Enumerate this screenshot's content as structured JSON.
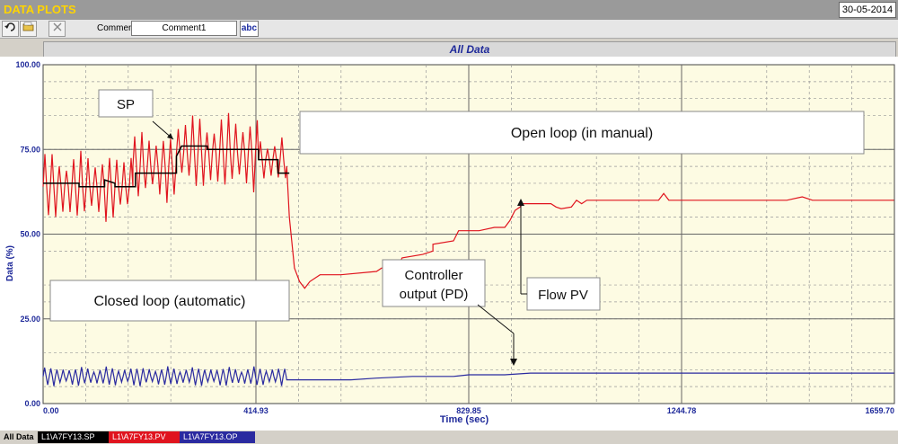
{
  "window": {
    "title": "DATA PLOTS",
    "date": "30-05-2014"
  },
  "toolbar": {
    "undo_icon": "undo-icon",
    "open_icon": "folder-icon",
    "close_icon": "close-icon",
    "comment_label": "Comment",
    "comment_value": "Comment1",
    "spell_label": "abc"
  },
  "chart_header": "All Data",
  "colors": {
    "sp": "#000000",
    "pv": "#e0141e",
    "op": "#2a2aa0",
    "grid": "#7a7a7a",
    "plot_bg": "#fdfbe3"
  },
  "chart_data": {
    "type": "line",
    "xlabel": "Time (sec)",
    "ylabel": "Data (%)",
    "xlim": [
      0.0,
      1659.7
    ],
    "ylim": [
      0,
      100
    ],
    "x_ticks": [
      "0.00",
      "414.93",
      "829.85",
      "1244.78",
      "1659.70"
    ],
    "y_ticks": [
      "0.00",
      "25.00",
      "50.00",
      "75.00",
      "100.00"
    ],
    "series": [
      {
        "name": "L1\\A7FY13.SP",
        "color": "#000000",
        "points": [
          [
            0,
            65
          ],
          [
            70,
            65
          ],
          [
            70,
            64
          ],
          [
            120,
            64
          ],
          [
            120,
            66
          ],
          [
            140,
            65
          ],
          [
            140,
            64
          ],
          [
            180,
            64
          ],
          [
            180,
            68
          ],
          [
            260,
            68
          ],
          [
            260,
            73
          ],
          [
            270,
            76
          ],
          [
            320,
            76
          ],
          [
            320,
            75
          ],
          [
            420,
            75
          ],
          [
            420,
            72
          ],
          [
            458,
            72
          ],
          [
            458,
            68
          ],
          [
            480,
            68
          ]
        ]
      },
      {
        "name": "L1\\A7FY13.PV",
        "color": "#e0141e",
        "segments": [
          {
            "start": 0,
            "end": 175,
            "center": 64,
            "amp": 9,
            "period": 14
          },
          {
            "start": 175,
            "end": 260,
            "center": 70,
            "amp": 9,
            "period": 14
          },
          {
            "start": 260,
            "end": 420,
            "center": 74,
            "amp": 10,
            "period": 14
          },
          {
            "start": 420,
            "end": 475,
            "center": 72,
            "amp": 6,
            "period": 14
          }
        ],
        "points": [
          [
            475,
            70
          ],
          [
            480,
            55
          ],
          [
            490,
            40
          ],
          [
            500,
            36
          ],
          [
            510,
            34
          ],
          [
            520,
            36
          ],
          [
            540,
            38
          ],
          [
            580,
            38
          ],
          [
            650,
            39
          ],
          [
            660,
            40
          ],
          [
            690,
            40
          ],
          [
            700,
            43
          ],
          [
            740,
            44
          ],
          [
            760,
            45
          ],
          [
            760,
            47
          ],
          [
            800,
            48
          ],
          [
            810,
            51
          ],
          [
            850,
            51
          ],
          [
            880,
            52
          ],
          [
            900,
            52
          ],
          [
            910,
            54
          ],
          [
            920,
            57
          ],
          [
            930,
            58
          ],
          [
            935,
            59
          ],
          [
            960,
            59
          ],
          [
            990,
            59
          ],
          [
            1000,
            58
          ],
          [
            1010,
            57.5
          ],
          [
            1030,
            58
          ],
          [
            1040,
            60
          ],
          [
            1050,
            59
          ],
          [
            1060,
            60
          ],
          [
            1100,
            60
          ],
          [
            1200,
            60
          ],
          [
            1210,
            62
          ],
          [
            1220,
            60
          ],
          [
            1300,
            60
          ],
          [
            1450,
            60
          ],
          [
            1480,
            61
          ],
          [
            1500,
            60
          ],
          [
            1659,
            60
          ]
        ]
      },
      {
        "name": "L1\\A7FY13.OP",
        "color": "#2a2aa0",
        "segments": [
          {
            "start": 0,
            "end": 475,
            "center": 8,
            "amp": 2.5,
            "period": 12
          }
        ],
        "points": [
          [
            475,
            7
          ],
          [
            490,
            7
          ],
          [
            540,
            7
          ],
          [
            600,
            7
          ],
          [
            650,
            7.5
          ],
          [
            720,
            8
          ],
          [
            800,
            8
          ],
          [
            830,
            8.5
          ],
          [
            900,
            8.5
          ],
          [
            950,
            9
          ],
          [
            1100,
            9
          ],
          [
            1300,
            9
          ],
          [
            1659,
            9
          ]
        ]
      }
    ],
    "annotations": [
      {
        "text": "SP"
      },
      {
        "text": "Open loop (in manual)"
      },
      {
        "text": "Closed loop (automatic)"
      },
      {
        "text": "Controller"
      },
      {
        "text": "output (PD)"
      },
      {
        "text": "Flow PV"
      }
    ]
  },
  "bottom_tabs": [
    "All Data",
    "L1\\A7FY13.SP",
    "L1\\A7FY13.PV",
    "L1\\A7FY13.OP"
  ]
}
